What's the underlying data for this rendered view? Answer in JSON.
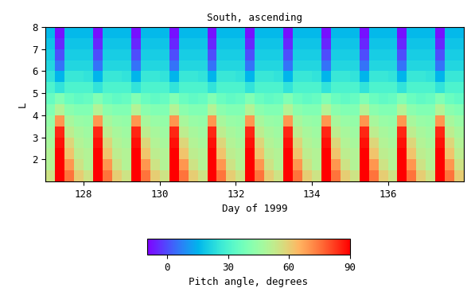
{
  "chart_data": {
    "type": "heatmap",
    "title": "South, ascending",
    "x_label": "Day of 1999",
    "y_label": "L",
    "xlim": [
      127,
      138
    ],
    "xticks": [
      128,
      130,
      132,
      134,
      136
    ],
    "ylim": [
      1,
      8
    ],
    "yticks": [
      2,
      3,
      4,
      5,
      6,
      7,
      8
    ],
    "x_edges": [
      127.0,
      127.25,
      127.5,
      127.75,
      128.0,
      128.25,
      128.5,
      128.75,
      129.0,
      129.25,
      129.5,
      129.75,
      130.0,
      130.25,
      130.5,
      130.75,
      131.0,
      131.25,
      131.5,
      131.75,
      132.0,
      132.25,
      132.5,
      132.75,
      133.0,
      133.25,
      133.5,
      133.75,
      134.0,
      134.25,
      134.5,
      134.75,
      135.0,
      135.25,
      135.5,
      135.75,
      136.0,
      136.25,
      136.5,
      136.75,
      137.0,
      137.25,
      137.5,
      137.75,
      138.0
    ],
    "y_edges": [
      1.0,
      1.5,
      2.0,
      2.5,
      3.0,
      3.5,
      4.0,
      4.5,
      5.0,
      5.5,
      6.0,
      6.5,
      7.0,
      7.5,
      8.0
    ],
    "cells": [
      [
        55,
        90,
        75,
        60,
        55,
        90,
        75,
        60,
        55,
        90,
        75,
        60,
        55,
        90,
        75,
        60,
        55,
        90,
        75,
        60,
        55,
        90,
        75,
        60,
        55,
        90,
        75,
        60,
        55,
        90,
        75,
        60,
        55,
        90,
        75,
        60,
        55,
        90,
        75,
        60,
        55,
        90,
        75,
        60
      ],
      [
        50,
        90,
        70,
        55,
        50,
        90,
        70,
        55,
        50,
        90,
        70,
        55,
        50,
        90,
        70,
        55,
        50,
        90,
        70,
        55,
        50,
        90,
        70,
        55,
        50,
        90,
        70,
        55,
        50,
        90,
        70,
        55,
        50,
        90,
        70,
        55,
        50,
        90,
        70,
        55,
        50,
        90,
        70,
        55
      ],
      [
        50,
        90,
        62,
        52,
        50,
        90,
        62,
        52,
        50,
        90,
        62,
        52,
        50,
        90,
        62,
        52,
        50,
        90,
        62,
        52,
        50,
        90,
        62,
        52,
        50,
        90,
        62,
        52,
        50,
        90,
        62,
        52,
        50,
        90,
        62,
        52,
        50,
        90,
        62,
        52,
        50,
        90,
        62,
        52
      ],
      [
        48,
        88,
        58,
        50,
        48,
        88,
        58,
        50,
        48,
        88,
        58,
        50,
        48,
        88,
        58,
        50,
        48,
        88,
        58,
        50,
        48,
        88,
        58,
        50,
        48,
        88,
        58,
        50,
        48,
        88,
        58,
        50,
        48,
        88,
        58,
        50,
        48,
        88,
        58,
        50,
        48,
        88,
        58,
        50
      ],
      [
        46,
        85,
        52,
        48,
        46,
        85,
        52,
        48,
        46,
        85,
        52,
        48,
        46,
        85,
        52,
        48,
        46,
        85,
        52,
        48,
        46,
        85,
        52,
        48,
        46,
        85,
        52,
        48,
        46,
        85,
        52,
        48,
        46,
        85,
        52,
        48,
        46,
        85,
        52,
        48,
        46,
        85,
        52,
        48
      ],
      [
        44,
        70,
        48,
        45,
        44,
        70,
        48,
        45,
        44,
        70,
        48,
        45,
        44,
        70,
        48,
        45,
        44,
        70,
        48,
        45,
        44,
        70,
        48,
        45,
        44,
        70,
        48,
        45,
        44,
        70,
        48,
        45,
        44,
        70,
        48,
        45,
        44,
        70,
        48,
        45,
        44,
        70,
        48,
        45
      ],
      [
        40,
        50,
        42,
        40,
        40,
        50,
        42,
        40,
        40,
        50,
        42,
        40,
        40,
        50,
        42,
        40,
        40,
        50,
        42,
        40,
        40,
        50,
        42,
        40,
        40,
        50,
        42,
        40,
        40,
        50,
        42,
        40,
        40,
        50,
        42,
        40,
        40,
        50,
        42,
        40,
        40,
        50,
        42,
        40
      ],
      [
        35,
        40,
        36,
        34,
        35,
        40,
        36,
        34,
        35,
        40,
        36,
        34,
        35,
        40,
        36,
        34,
        35,
        40,
        36,
        34,
        35,
        40,
        36,
        34,
        35,
        40,
        36,
        34,
        35,
        40,
        36,
        34,
        35,
        40,
        36,
        34,
        35,
        40,
        36,
        34,
        35,
        40,
        36,
        34
      ],
      [
        30,
        25,
        30,
        30,
        30,
        25,
        30,
        30,
        30,
        25,
        30,
        30,
        30,
        25,
        30,
        30,
        30,
        25,
        30,
        30,
        30,
        25,
        30,
        30,
        30,
        25,
        30,
        30,
        30,
        25,
        30,
        30,
        30,
        25,
        30,
        30,
        30,
        25,
        30,
        30,
        30,
        25,
        30,
        30
      ],
      [
        25,
        15,
        26,
        26,
        25,
        15,
        26,
        26,
        25,
        15,
        26,
        26,
        25,
        15,
        26,
        26,
        25,
        15,
        26,
        26,
        25,
        15,
        26,
        26,
        25,
        15,
        26,
        26,
        25,
        15,
        26,
        26,
        25,
        15,
        26,
        26,
        25,
        15,
        26,
        26,
        25,
        15,
        26,
        26
      ],
      [
        22,
        5,
        22,
        22,
        22,
        5,
        22,
        22,
        22,
        5,
        22,
        22,
        22,
        5,
        22,
        22,
        22,
        5,
        22,
        22,
        22,
        5,
        22,
        22,
        22,
        5,
        22,
        22,
        22,
        5,
        22,
        22,
        22,
        5,
        22,
        22,
        22,
        5,
        22,
        22,
        22,
        5,
        22,
        22
      ],
      [
        20,
        0,
        20,
        20,
        20,
        0,
        20,
        20,
        20,
        0,
        20,
        20,
        20,
        0,
        20,
        20,
        20,
        0,
        20,
        20,
        20,
        0,
        20,
        20,
        20,
        0,
        20,
        20,
        20,
        0,
        20,
        20,
        20,
        0,
        20,
        20,
        20,
        0,
        20,
        20,
        20,
        0,
        20,
        20
      ],
      [
        18,
        -5,
        18,
        18,
        18,
        -5,
        18,
        18,
        18,
        -5,
        18,
        18,
        18,
        -5,
        18,
        18,
        18,
        -5,
        18,
        18,
        18,
        -5,
        18,
        18,
        18,
        -5,
        18,
        18,
        18,
        -5,
        18,
        18,
        18,
        -5,
        18,
        18,
        18,
        -5,
        18,
        18,
        18,
        -5,
        18,
        18
      ],
      [
        16,
        -8,
        16,
        16,
        16,
        -8,
        16,
        16,
        16,
        -8,
        16,
        16,
        16,
        -8,
        16,
        16,
        16,
        -8,
        16,
        16,
        16,
        -8,
        16,
        16,
        16,
        -8,
        16,
        16,
        16,
        -8,
        16,
        16,
        16,
        -8,
        16,
        16,
        16,
        -8,
        16,
        16,
        16,
        -8,
        16,
        16
      ]
    ],
    "colorbar": {
      "label": "Pitch angle, degrees",
      "lim": [
        -10,
        90
      ],
      "ticks": [
        0,
        30,
        60,
        90
      ]
    }
  }
}
